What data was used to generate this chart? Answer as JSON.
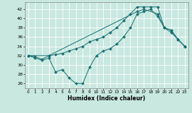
{
  "xlabel": "Humidex (Indice chaleur)",
  "background_color": "#c8e8e0",
  "line_color": "#1a7070",
  "grid_color": "#ffffff",
  "xlim": [
    -0.5,
    23.5
  ],
  "ylim": [
    25,
    43.5
  ],
  "yticks": [
    26,
    28,
    30,
    32,
    34,
    36,
    38,
    40,
    42
  ],
  "xticks": [
    0,
    1,
    2,
    3,
    4,
    5,
    6,
    7,
    8,
    9,
    10,
    11,
    12,
    13,
    14,
    15,
    16,
    17,
    18,
    19,
    20,
    21,
    22,
    23
  ],
  "series1_x": [
    0,
    1,
    2,
    3,
    4,
    5,
    6,
    7,
    8,
    9,
    10,
    11,
    12,
    13,
    14,
    15,
    16,
    17,
    18,
    19,
    20,
    21,
    22,
    23
  ],
  "series1_y": [
    32,
    31.5,
    31,
    31.5,
    28.5,
    29,
    27.2,
    26,
    26,
    29.5,
    32,
    33,
    33.5,
    34.5,
    36,
    38,
    41,
    41.5,
    42,
    40.5,
    38,
    37,
    35.5,
    34
  ],
  "series2_x": [
    0,
    1,
    2,
    3,
    4,
    5,
    6,
    7,
    8,
    9,
    10,
    11,
    12,
    13,
    14,
    15,
    16,
    17,
    18,
    19,
    20,
    21,
    22,
    23
  ],
  "series2_y": [
    32,
    31.8,
    31.2,
    32,
    32.2,
    32.5,
    33,
    33.5,
    34,
    35,
    35.5,
    36,
    37,
    38,
    39.5,
    41,
    42.5,
    42.5,
    42.5,
    42.5,
    38,
    37.5,
    35.5,
    34
  ],
  "series3_x": [
    0,
    3,
    16,
    17,
    19,
    20,
    21,
    22,
    23
  ],
  "series3_y": [
    32,
    32,
    41.5,
    42,
    41,
    38.0,
    37.5,
    35.5,
    34
  ]
}
